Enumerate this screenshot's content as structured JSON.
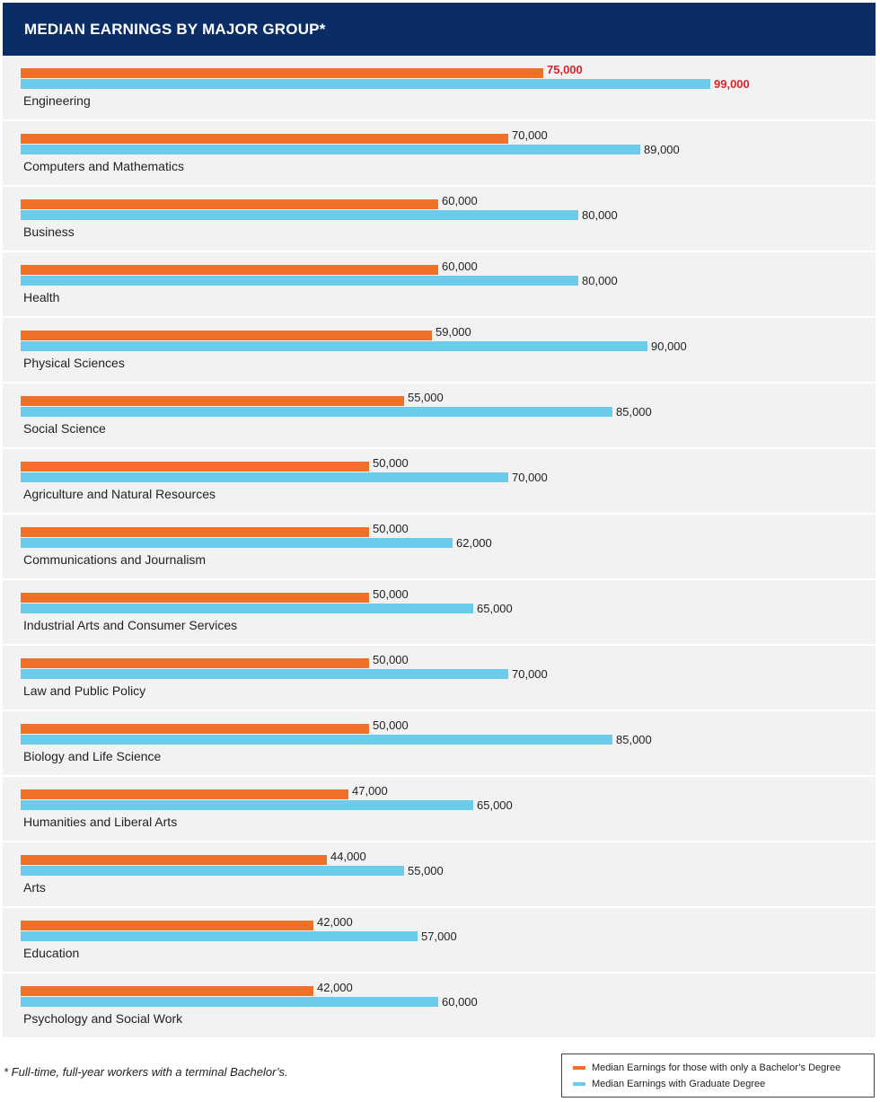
{
  "chart_data": {
    "type": "bar",
    "orientation": "horizontal",
    "title": "MEDIAN EARNINGS BY MAJOR GROUP*",
    "categories": [
      "Engineering",
      "Computers and Mathematics",
      "Business",
      "Health",
      "Physical Sciences",
      "Social Science",
      "Agriculture and Natural Resources",
      "Communications and Journalism",
      "Industrial Arts and Consumer Services",
      "Law and Public Policy",
      "Biology and Life Science",
      "Humanities and Liberal Arts",
      "Arts",
      "Education",
      "Psychology and Social Work"
    ],
    "series": [
      {
        "name": "Median Earnings for those with only a Bachelor’s Degree",
        "color": "#f07028",
        "values": [
          75000,
          70000,
          60000,
          60000,
          59000,
          55000,
          50000,
          50000,
          50000,
          50000,
          50000,
          47000,
          44000,
          42000,
          42000
        ],
        "labels": [
          "75,000",
          "70,000",
          "60,000",
          "60,000",
          "59,000",
          "55,000",
          "50,000",
          "50,000",
          "50,000",
          "50,000",
          "50,000",
          "47,000",
          "44,000",
          "42,000",
          "42,000"
        ]
      },
      {
        "name": "Median Earnings with Graduate Degree",
        "color": "#6ccbea",
        "values": [
          99000,
          89000,
          80000,
          80000,
          90000,
          85000,
          70000,
          62000,
          65000,
          70000,
          85000,
          65000,
          55000,
          57000,
          60000
        ],
        "labels": [
          "99,000",
          "89,000",
          "80,000",
          "80,000",
          "90,000",
          "85,000",
          "70,000",
          "62,000",
          "65,000",
          "70,000",
          "85,000",
          "65,000",
          "55,000",
          "57,000",
          "60,000"
        ]
      }
    ],
    "highlight_category": "Engineering",
    "highlight_color": "#d9252b",
    "xlim": [
      0,
      99000
    ],
    "legend_position": "bottom-right",
    "footnote": "* Full-time, full-year workers with a terminal Bachelor’s."
  },
  "colors": {
    "header_bg": "#0b2d66",
    "row_bg": "#f2f2f2"
  }
}
